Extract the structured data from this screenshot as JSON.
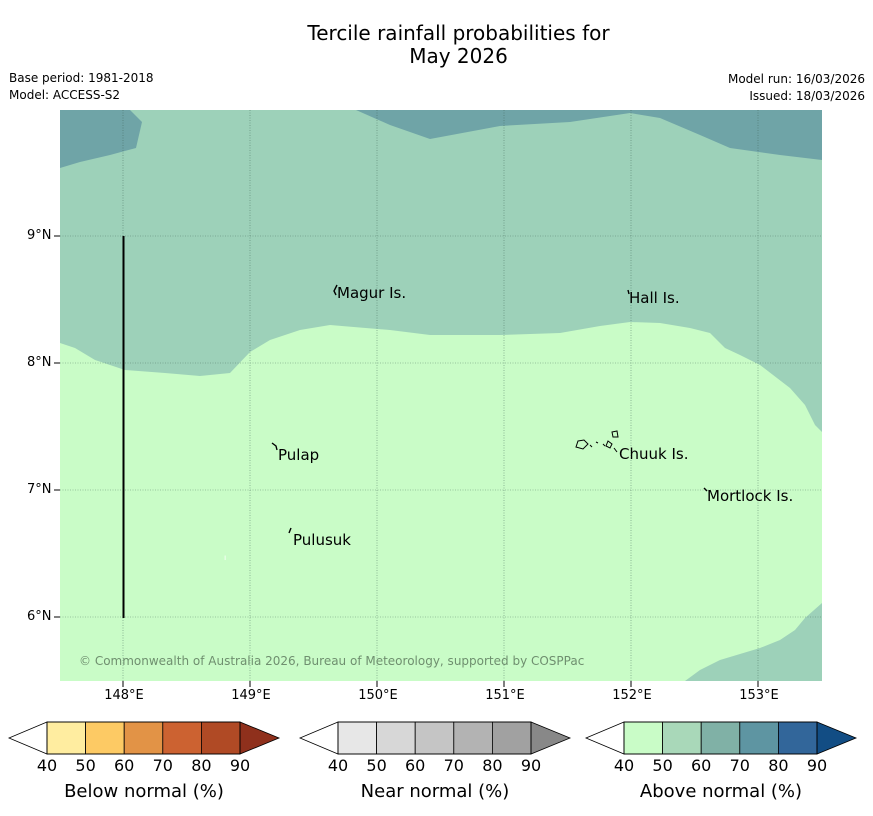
{
  "title_line1": "Tercile rainfall probabilities for",
  "title_line2": "May 2026",
  "base_period": "Base period: 1981-2018",
  "model": "Model: ACCESS-S2",
  "model_run": "Model run: 16/03/2026",
  "issued": "Issued: 18/03/2026",
  "lat_labels": [
    "9°N",
    "8°N",
    "7°N",
    "6°N"
  ],
  "lon_labels": [
    "148°E",
    "149°E",
    "150°E",
    "151°E",
    "152°E",
    "153°E"
  ],
  "places": {
    "magur": "Magur Is.",
    "hall": "Hall Is.",
    "pulap": "Pulap",
    "chuuk": "Chuuk Is.",
    "mortlock": "Mortlock Is.",
    "pulusuk": "Pulusuk"
  },
  "copyright": "© Commonwealth of Australia 2026, Bureau of Meteorology, supported by COSPPac",
  "colorbars": {
    "below": {
      "label": "Below normal (%)",
      "ticks": [
        "40",
        "50",
        "60",
        "70",
        "80",
        "90"
      ],
      "colors": [
        "#ffffff",
        "#ffeda0",
        "#fdca64",
        "#e29346",
        "#cc6231",
        "#b04a25",
        "#8f301c"
      ]
    },
    "near": {
      "label": "Near normal (%)",
      "ticks": [
        "40",
        "50",
        "60",
        "70",
        "80",
        "90"
      ],
      "colors": [
        "#ffffff",
        "#e7e7e7",
        "#d7d7d7",
        "#c5c5c5",
        "#b3b3b3",
        "#a1a1a1",
        "#888888"
      ]
    },
    "above": {
      "label": "Above normal (%)",
      "ticks": [
        "40",
        "50",
        "60",
        "70",
        "80",
        "90"
      ],
      "colors": [
        "#ffffff",
        "#c9fcc7",
        "#a9d8b9",
        "#80b1a6",
        "#5e95a2",
        "#32669a",
        "#124d84"
      ]
    }
  },
  "map_colors": {
    "above_40_50": "#c9fcc7",
    "above_50_60": "#9dd1b9",
    "above_60_70": "#6fa4a7"
  }
}
